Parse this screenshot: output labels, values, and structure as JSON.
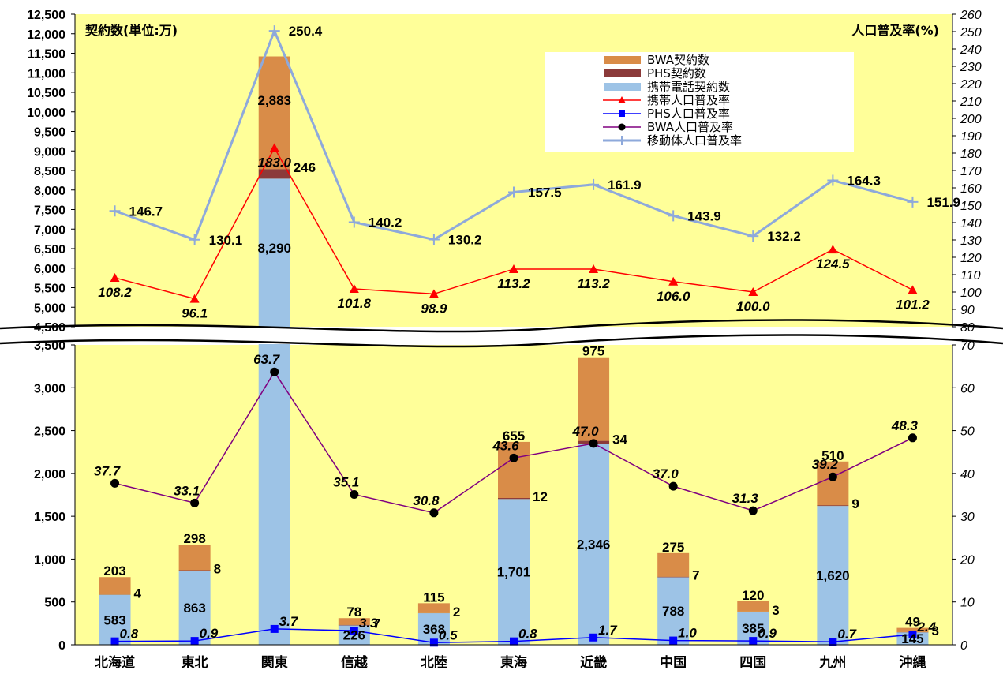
{
  "chart_data": {
    "type": "bar",
    "title_left": "契約数(単位:万)",
    "title_right": "人口普及率(%)",
    "categories": [
      "北海道",
      "東北",
      "関東",
      "信越",
      "北陸",
      "東海",
      "近畿",
      "中国",
      "四国",
      "九州",
      "沖縄"
    ],
    "left_ticks_top": [
      "12,500",
      "12,000",
      "11,500",
      "11,000",
      "10,500",
      "10,000",
      "9,500",
      "9,000",
      "8,500",
      "8,000",
      "7,500",
      "7,000",
      "6,500",
      "6,000",
      "5,500",
      "5,000",
      "4,500"
    ],
    "left_ticks_bottom": [
      "3,500",
      "3,000",
      "2,500",
      "2,000",
      "1,500",
      "1,000",
      "500",
      "0"
    ],
    "right_ticks_top": [
      "260",
      "250",
      "240",
      "230",
      "220",
      "210",
      "200",
      "190",
      "180",
      "170",
      "160",
      "150",
      "140",
      "130",
      "120",
      "110",
      "100",
      "90",
      "80"
    ],
    "right_ticks_bottom": [
      "70",
      "60",
      "50",
      "40",
      "30",
      "20",
      "10",
      "0"
    ],
    "series": [
      {
        "name": "BWA契約数",
        "type": "bar",
        "color": "#D98C48",
        "values": [
          203,
          298,
          2883,
          78,
          115,
          655,
          975,
          275,
          120,
          510,
          49
        ],
        "labels": [
          "203",
          "298",
          "2,883",
          "78",
          "115",
          "655",
          "975",
          "275",
          "120",
          "510",
          "49"
        ]
      },
      {
        "name": "PHS契約数",
        "type": "bar",
        "color": "#8B3A3A",
        "values": [
          4,
          8,
          246,
          7,
          2,
          12,
          34,
          7,
          3,
          9,
          3
        ],
        "labels": [
          "4",
          "8",
          "246",
          "7",
          "2",
          "12",
          "34",
          "7",
          "3",
          "9",
          "3"
        ]
      },
      {
        "name": "携帯電話契約数",
        "type": "bar",
        "color": "#9DC3E6",
        "values": [
          583,
          863,
          8290,
          226,
          368,
          1701,
          2346,
          788,
          385,
          1620,
          145
        ],
        "labels": [
          "583",
          "863",
          "8,290",
          "226",
          "368",
          "1,701",
          "2,346",
          "788",
          "385",
          "1,620",
          "145"
        ]
      },
      {
        "name": "携帯人口普及率",
        "type": "line",
        "axis": "right",
        "color": "#FF0000",
        "marker": "triangle",
        "values": [
          108.2,
          96.1,
          183.0,
          101.8,
          98.9,
          113.2,
          113.2,
          106.0,
          100.0,
          124.5,
          101.2
        ],
        "labels": [
          "108.2",
          "96.1",
          "183.0",
          "101.8",
          "98.9",
          "113.2",
          "113.2",
          "106.0",
          "100.0",
          "124.5",
          "101.2"
        ]
      },
      {
        "name": "PHS人口普及率",
        "type": "line",
        "axis": "right",
        "color": "#0000FF",
        "marker": "square",
        "values": [
          0.8,
          0.9,
          3.7,
          3.3,
          0.5,
          0.8,
          1.7,
          1.0,
          0.9,
          0.7,
          2.4
        ],
        "labels": [
          "0.8",
          "0.9",
          "3.7",
          "3.3",
          "0.5",
          "0.8",
          "1.7",
          "1.0",
          "0.9",
          "0.7",
          "2.4"
        ]
      },
      {
        "name": "BWA人口普及率",
        "type": "line",
        "axis": "right",
        "color": "#800080",
        "marker": "circle",
        "values": [
          37.7,
          33.1,
          63.7,
          35.1,
          30.8,
          43.6,
          47.0,
          37.0,
          31.3,
          39.2,
          48.3
        ],
        "labels": [
          "37.7",
          "33.1",
          "63.7",
          "35.1",
          "30.8",
          "43.6",
          "47.0",
          "37.0",
          "31.3",
          "39.2",
          "48.3"
        ]
      },
      {
        "name": "移動体人口普及率",
        "type": "line",
        "axis": "right",
        "color": "#8EA9DB",
        "marker": "plus",
        "values": [
          146.7,
          130.1,
          250.4,
          140.2,
          130.2,
          157.5,
          161.9,
          143.9,
          132.2,
          164.3,
          151.9
        ],
        "labels": [
          "146.7",
          "130.1",
          "250.4",
          "140.2",
          "130.2",
          "157.5",
          "161.9",
          "143.9",
          "132.2",
          "164.3",
          "151.9"
        ]
      }
    ],
    "left_axis_break": [
      3500,
      4500
    ],
    "right_axis_break": [
      70,
      80
    ],
    "plot_background": "#FFFF99",
    "legend_position": "top-right"
  }
}
